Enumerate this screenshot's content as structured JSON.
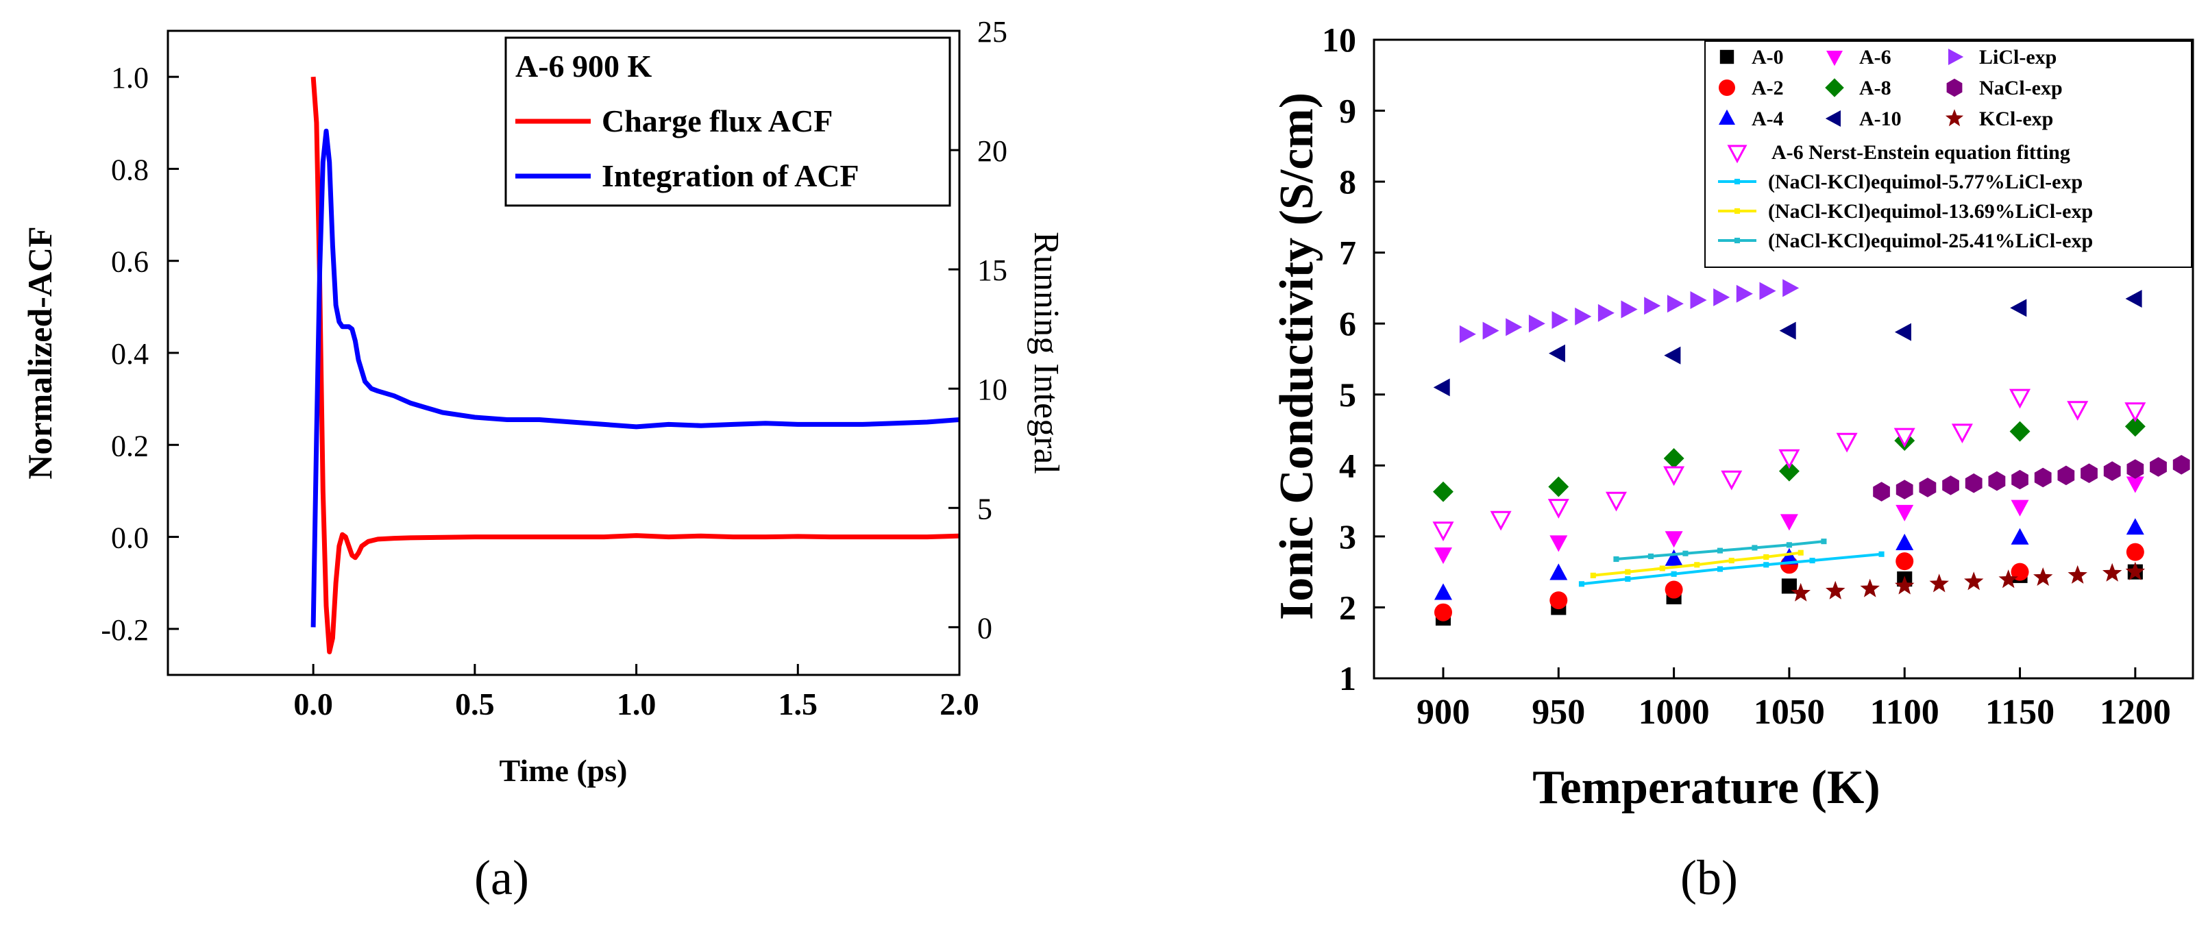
{
  "figure": {
    "panel_labels": [
      "(a)",
      "(b)"
    ]
  },
  "chart_data": [
    {
      "type": "line",
      "panel": "(a)",
      "xlabel": "Time (ps)",
      "ylabel": "Normalized-ACF",
      "y2label": "Running Integral",
      "xlim": [
        -0.45,
        2.0
      ],
      "ylim": [
        -0.3,
        1.1
      ],
      "y2lim": [
        -2,
        25
      ],
      "xticks": [
        0.0,
        0.5,
        1.0,
        1.5,
        2.0
      ],
      "xtick_labels": [
        "0.0",
        "0.5",
        "1.0",
        "1.5",
        "2.0"
      ],
      "yticks": [
        -0.2,
        0.0,
        0.2,
        0.4,
        0.6,
        0.8,
        1.0
      ],
      "ytick_labels": [
        "-0.2",
        "0.0",
        "0.2",
        "0.4",
        "0.6",
        "0.8",
        "1.0"
      ],
      "y2ticks": [
        0,
        5,
        10,
        15,
        20,
        25
      ],
      "y2tick_labels": [
        "0",
        "5",
        "10",
        "15",
        "20",
        "25"
      ],
      "legend_title": "A-6 900 K",
      "legend_position": "top-right",
      "series": [
        {
          "name": "Charge flux ACF",
          "axis": "left",
          "color": "#ff0000",
          "x": [
            0.0,
            0.01,
            0.02,
            0.03,
            0.04,
            0.05,
            0.06,
            0.07,
            0.08,
            0.09,
            0.1,
            0.11,
            0.12,
            0.13,
            0.14,
            0.15,
            0.17,
            0.2,
            0.25,
            0.3,
            0.4,
            0.5,
            0.6,
            0.7,
            0.8,
            0.9,
            1.0,
            1.1,
            1.2,
            1.3,
            1.4,
            1.5,
            1.6,
            1.7,
            1.8,
            1.9,
            2.0
          ],
          "y": [
            1.0,
            0.9,
            0.55,
            0.1,
            -0.15,
            -0.25,
            -0.22,
            -0.1,
            -0.02,
            0.005,
            0.0,
            -0.02,
            -0.04,
            -0.045,
            -0.035,
            -0.02,
            -0.01,
            -0.005,
            -0.003,
            -0.002,
            -0.001,
            0.0,
            0.0,
            0.0,
            0.0,
            0.0,
            0.003,
            0.0,
            0.002,
            0.0,
            0.0,
            0.001,
            0.0,
            0.0,
            0.0,
            0.0,
            0.002
          ]
        },
        {
          "name": "Integration of ACF",
          "axis": "right",
          "color": "#0000ff",
          "x": [
            0.0,
            0.01,
            0.02,
            0.03,
            0.04,
            0.05,
            0.06,
            0.07,
            0.08,
            0.09,
            0.1,
            0.11,
            0.12,
            0.13,
            0.14,
            0.16,
            0.18,
            0.2,
            0.25,
            0.3,
            0.35,
            0.4,
            0.45,
            0.5,
            0.6,
            0.7,
            0.8,
            0.9,
            1.0,
            1.1,
            1.2,
            1.3,
            1.4,
            1.5,
            1.6,
            1.7,
            1.8,
            1.9,
            2.0
          ],
          "y": [
            0,
            8,
            15,
            19.5,
            20.8,
            19.5,
            16,
            13.5,
            12.8,
            12.6,
            12.6,
            12.6,
            12.5,
            12.0,
            11.2,
            10.3,
            10.0,
            9.9,
            9.7,
            9.4,
            9.2,
            9.0,
            8.9,
            8.8,
            8.7,
            8.7,
            8.6,
            8.5,
            8.4,
            8.5,
            8.45,
            8.5,
            8.55,
            8.5,
            8.5,
            8.5,
            8.55,
            8.6,
            8.7
          ]
        }
      ]
    },
    {
      "type": "scatter",
      "panel": "(b)",
      "xlabel": "Temperature (K)",
      "ylabel": "Ionic Conductivity (S/cm)",
      "xlim": [
        870,
        1225
      ],
      "ylim": [
        1,
        10
      ],
      "xticks": [
        900,
        950,
        1000,
        1050,
        1100,
        1150,
        1200
      ],
      "xtick_labels": [
        "900",
        "950",
        "1000",
        "1050",
        "1100",
        "1150",
        "1200"
      ],
      "yticks": [
        1,
        2,
        3,
        4,
        5,
        6,
        7,
        8,
        9,
        10
      ],
      "ytick_labels": [
        "1",
        "2",
        "3",
        "4",
        "5",
        "6",
        "7",
        "8",
        "9",
        "10"
      ],
      "legend_position": "top-right",
      "series": [
        {
          "name": "A-0",
          "marker": "square",
          "color": "#000000",
          "x": [
            900,
            950,
            1000,
            1050,
            1100,
            1150,
            1200
          ],
          "y": [
            1.85,
            2.0,
            2.15,
            2.3,
            2.4,
            2.45,
            2.5
          ]
        },
        {
          "name": "A-2",
          "marker": "circle",
          "color": "#ff0000",
          "x": [
            900,
            950,
            1000,
            1050,
            1100,
            1150,
            1200
          ],
          "y": [
            1.93,
            2.1,
            2.25,
            2.6,
            2.65,
            2.5,
            2.78
          ]
        },
        {
          "name": "A-4",
          "marker": "triangle-up",
          "color": "#0000ff",
          "x": [
            900,
            950,
            1000,
            1050,
            1100,
            1150,
            1200
          ],
          "y": [
            2.2,
            2.48,
            2.68,
            2.7,
            2.9,
            2.98,
            3.12
          ]
        },
        {
          "name": "A-6",
          "marker": "triangle-down",
          "color": "#ff00ff",
          "x": [
            900,
            950,
            1000,
            1050,
            1100,
            1150,
            1200
          ],
          "y": [
            2.75,
            2.92,
            2.98,
            3.22,
            3.35,
            3.42,
            3.75
          ]
        },
        {
          "name": "A-8",
          "marker": "diamond",
          "color": "#008000",
          "x": [
            900,
            950,
            1000,
            1050,
            1100,
            1150,
            1200
          ],
          "y": [
            3.63,
            3.7,
            4.1,
            3.92,
            4.35,
            4.48,
            4.55
          ]
        },
        {
          "name": "A-10",
          "marker": "triangle-left",
          "color": "#000080",
          "x": [
            900,
            950,
            1000,
            1050,
            1100,
            1150,
            1200
          ],
          "y": [
            5.1,
            5.58,
            5.55,
            5.9,
            5.88,
            6.22,
            6.35
          ]
        },
        {
          "name": "LiCl-exp",
          "marker": "triangle-right",
          "color": "#9933ff",
          "x": [
            910,
            920,
            930,
            940,
            950,
            960,
            970,
            980,
            990,
            1000,
            1010,
            1020,
            1030,
            1040,
            1050
          ],
          "y": [
            5.85,
            5.9,
            5.95,
            6.0,
            6.05,
            6.1,
            6.15,
            6.2,
            6.25,
            6.28,
            6.33,
            6.37,
            6.42,
            6.46,
            6.5
          ]
        },
        {
          "name": "NaCl-exp",
          "marker": "hexagon",
          "color": "#800080",
          "x": [
            1090,
            1100,
            1110,
            1120,
            1130,
            1140,
            1150,
            1160,
            1170,
            1180,
            1190,
            1200,
            1210,
            1220
          ],
          "y": [
            3.63,
            3.66,
            3.69,
            3.72,
            3.75,
            3.78,
            3.8,
            3.83,
            3.86,
            3.89,
            3.92,
            3.95,
            3.98,
            4.01
          ]
        },
        {
          "name": "KCl-exp",
          "marker": "star",
          "color": "#8b0000",
          "x": [
            1055,
            1070,
            1085,
            1100,
            1115,
            1130,
            1145,
            1160,
            1175,
            1190,
            1200
          ],
          "y": [
            2.2,
            2.23,
            2.26,
            2.3,
            2.33,
            2.36,
            2.39,
            2.42,
            2.45,
            2.48,
            2.5
          ]
        },
        {
          "name": "A-6 Nerst-Enstein equation fitting",
          "marker": "triangle-down-open",
          "color": "#ff00ff",
          "x": [
            900,
            925,
            950,
            975,
            1000,
            1025,
            1050,
            1075,
            1100,
            1125,
            1150,
            1175,
            1200
          ],
          "y": [
            3.1,
            3.25,
            3.42,
            3.52,
            3.88,
            3.82,
            4.12,
            4.35,
            4.42,
            4.48,
            4.97,
            4.8,
            4.78
          ]
        },
        {
          "name": "(NaCl-KCl)equimol-5.77%LiCl-exp",
          "marker": "small-square-line",
          "color": "#00ccff",
          "x": [
            960,
            980,
            1000,
            1020,
            1040,
            1060,
            1090
          ],
          "y": [
            2.33,
            2.4,
            2.47,
            2.54,
            2.6,
            2.66,
            2.75
          ]
        },
        {
          "name": "(NaCl-KCl)equimol-13.69%LiCl-exp",
          "marker": "small-square-line",
          "color": "#ffee00",
          "x": [
            965,
            980,
            995,
            1010,
            1025,
            1040,
            1055
          ],
          "y": [
            2.45,
            2.5,
            2.55,
            2.6,
            2.66,
            2.71,
            2.77
          ]
        },
        {
          "name": "(NaCl-KCl)equimol-25.41%LiCl-exp",
          "marker": "small-square-line",
          "color": "#22bbcc",
          "x": [
            975,
            990,
            1005,
            1020,
            1035,
            1050,
            1065
          ],
          "y": [
            2.68,
            2.72,
            2.76,
            2.8,
            2.84,
            2.88,
            2.93
          ]
        }
      ]
    }
  ]
}
